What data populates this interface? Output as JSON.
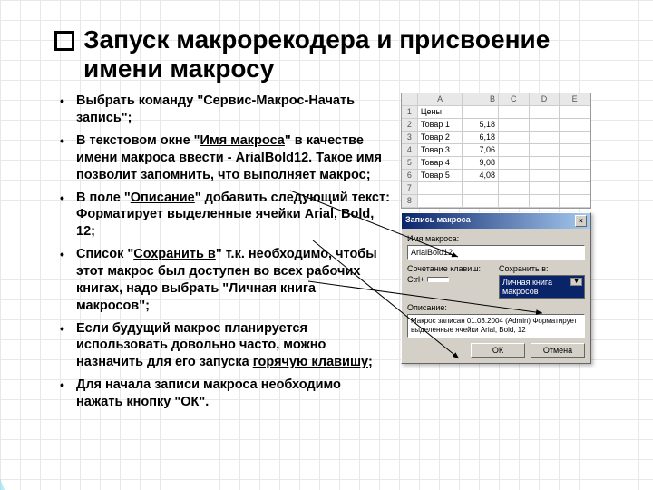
{
  "title": "Запуск макрорекодера и присвоение имени макросу",
  "bullets": [
    "Выбрать команду \"Сервис-Макрос-Начать запись\";",
    "В текстовом окне \"<u>Имя макроса</u>\" в качестве имени макроса ввести - ArialBold12. Такое имя позволит запомнить, что выполняет макрос;",
    "В поле \"<u>Описание</u>\" добавить следующий текст: Форматирует выделенные ячейки Arial, Bold, 12;",
    "Список \"<u>Сохранить в</u>\" т.к. необходимо, чтобы этот макрос был доступен во всех рабочих книгах, надо выбрать \"Личная книга макросов\";",
    "Если будущий макрос планируется использовать довольно часто, можно назначить для его запуска <u>горячую клавишу</u>;",
    "Для начала записи макроса необходимо нажать кнопку \"ОК\"."
  ],
  "spreadsheet": {
    "headers": [
      "",
      "A",
      "B",
      "C",
      "D",
      "E"
    ],
    "rows": [
      [
        "1",
        "Цены",
        "",
        "",
        "",
        ""
      ],
      [
        "2",
        "Товар 1",
        "5,18",
        "",
        "",
        ""
      ],
      [
        "3",
        "Товар 2",
        "6,18",
        "",
        "",
        ""
      ],
      [
        "4",
        "Товар 3",
        "7,06",
        "",
        "",
        ""
      ],
      [
        "5",
        "Товар 4",
        "9,08",
        "",
        "",
        ""
      ],
      [
        "6",
        "Товар 5",
        "4,08",
        "",
        "",
        ""
      ],
      [
        "7",
        "",
        "",
        "",
        "",
        ""
      ],
      [
        "8",
        "",
        "",
        "",
        "",
        ""
      ]
    ]
  },
  "dialog": {
    "title": "Запись макроса",
    "labels": {
      "name": "Имя макроса:",
      "shortcut": "Сочетание клавиш:",
      "savein": "Сохранить в:",
      "desc": "Описание:"
    },
    "name_value": "ArialBold12",
    "shortcut_prefix": "Ctrl+",
    "savein_value": "Личная книга макросов",
    "desc_value": "Макрос записан 01.03.2004 (Admin)\nФорматирует выделенные ячейки Arial, Bold, 12",
    "ok": "ОК",
    "cancel": "Отмена"
  },
  "colors": {
    "wave1": "#0a9dcf",
    "wave2": "#2fc4e8",
    "wave3": "#7ad9f0",
    "title_bar_dark": "#0a246a",
    "title_bar_light": "#a6caf0",
    "dialog_bg": "#d4d0c8"
  }
}
